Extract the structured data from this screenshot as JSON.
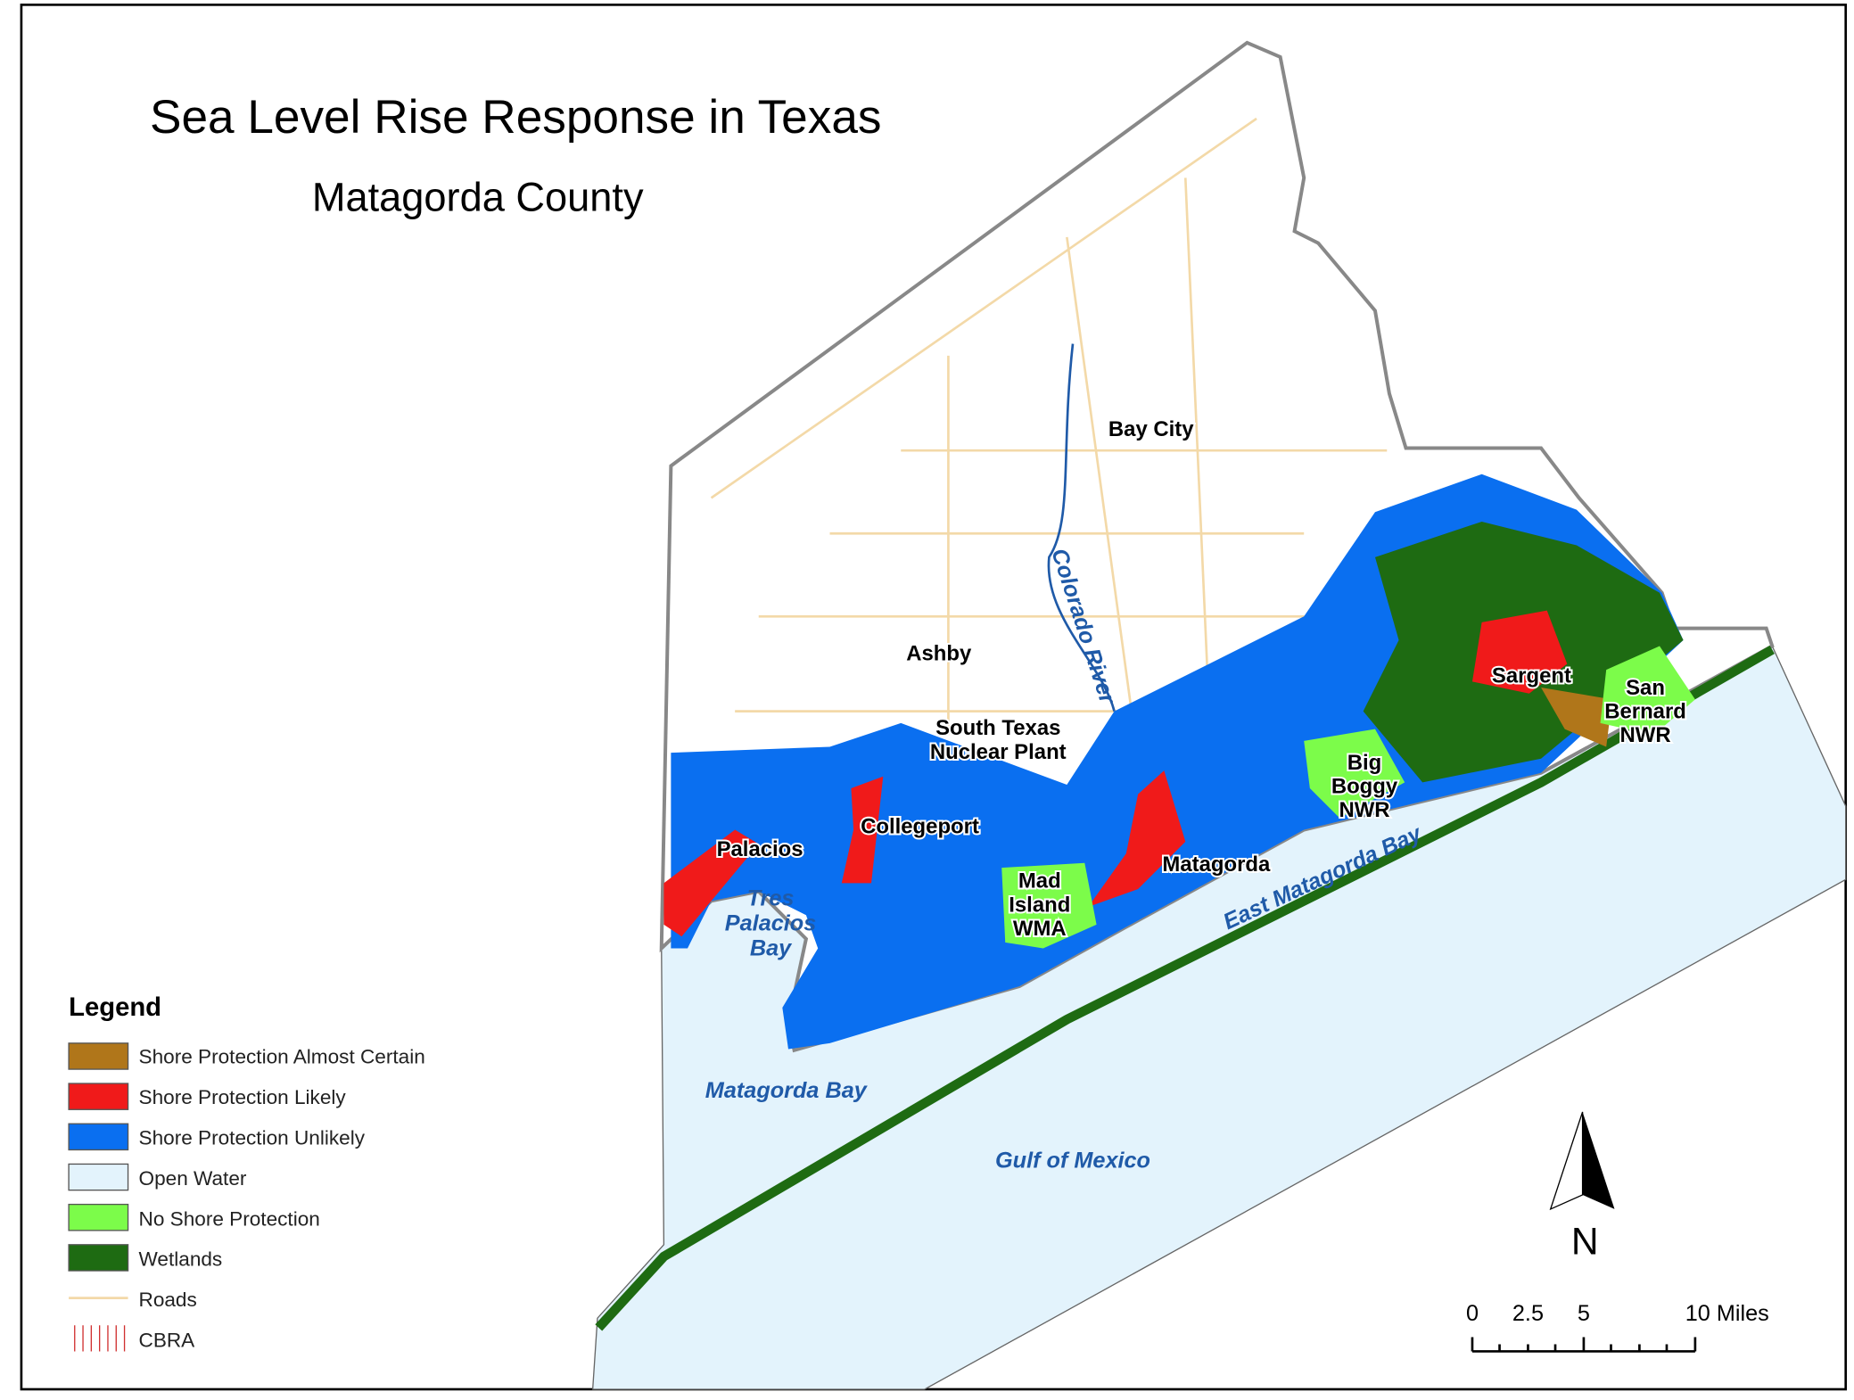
{
  "header": {
    "title": "Sea Level Rise Response in Texas",
    "subtitle": "Matagorda County"
  },
  "places": [
    {
      "lines": [
        "Bay City"
      ]
    },
    {
      "lines": [
        "Ashby"
      ]
    },
    {
      "lines": [
        "South Texas",
        "Nuclear Plant"
      ]
    },
    {
      "lines": [
        "Collegeport"
      ]
    },
    {
      "lines": [
        "Palacios"
      ]
    },
    {
      "lines": [
        "Matagorda"
      ]
    },
    {
      "lines": [
        "Sargent"
      ]
    },
    {
      "lines": [
        "Big",
        "Boggy",
        "NWR"
      ]
    },
    {
      "lines": [
        "San",
        "Bernard",
        "NWR"
      ]
    },
    {
      "lines": [
        "Mad",
        "Island",
        "WMA"
      ]
    }
  ],
  "water": [
    {
      "lines": [
        "Tres",
        "Palacios",
        "Bay"
      ]
    },
    {
      "lines": [
        "Matagorda Bay"
      ]
    },
    {
      "lines": [
        "Gulf of Mexico"
      ]
    },
    {
      "lines": [
        "East Matagorda Bay"
      ]
    },
    {
      "lines": [
        "Colorado River"
      ]
    }
  ],
  "legend": {
    "title": "Legend",
    "items": [
      "Shore Protection Almost Certain",
      "Shore Protection Likely",
      "Shore Protection Unlikely",
      "Open Water",
      "No Shore Protection",
      "Wetlands",
      "Roads",
      "CBRA"
    ]
  },
  "north": "N",
  "scale": [
    "0",
    "2.5",
    "5",
    "10 Miles"
  ]
}
